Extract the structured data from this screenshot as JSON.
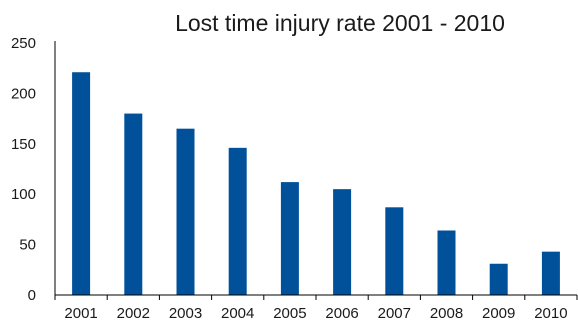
{
  "chart_data": {
    "type": "bar",
    "title": "Lost time injury rate 2001 - 2010",
    "xlabel": "",
    "ylabel": "",
    "categories": [
      "2001",
      "2002",
      "2003",
      "2004",
      "2005",
      "2006",
      "2007",
      "2008",
      "2009",
      "2010"
    ],
    "series": [
      {
        "values": [
          221,
          180,
          165,
          146,
          112,
          105,
          87,
          64,
          31,
          43
        ],
        "color": "#00519a"
      }
    ],
    "ylim": [
      0,
      250
    ],
    "yticks": [
      0,
      50,
      100,
      150,
      200,
      250
    ],
    "grid": false,
    "legend": "none"
  }
}
